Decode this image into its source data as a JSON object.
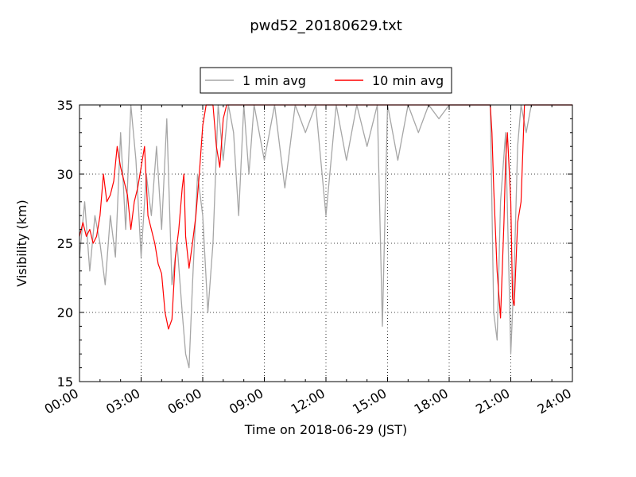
{
  "chart_data": {
    "type": "line",
    "title": "pwd52_20180629.txt",
    "xlabel": "Time on 2018-06-29 (JST)",
    "ylabel": "Visibility (km)",
    "xlim": [
      "00:00",
      "24:00"
    ],
    "ylim": [
      15,
      35
    ],
    "x_ticks": [
      "00:00",
      "03:00",
      "06:00",
      "09:00",
      "12:00",
      "15:00",
      "18:00",
      "21:00",
      "24:00"
    ],
    "y_ticks": [
      15,
      20,
      25,
      30,
      35
    ],
    "grid": true,
    "legend_position": "top-center",
    "series": [
      {
        "name": "1 min avg",
        "color": "#a6a6a6",
        "x": [
          "00:00",
          "00:15",
          "00:30",
          "00:45",
          "01:00",
          "01:15",
          "01:30",
          "01:45",
          "02:00",
          "02:15",
          "02:30",
          "02:45",
          "03:00",
          "03:15",
          "03:30",
          "03:45",
          "04:00",
          "04:15",
          "04:30",
          "04:45",
          "05:00",
          "05:10",
          "05:20",
          "05:30",
          "05:45",
          "06:00",
          "06:15",
          "06:30",
          "06:45",
          "07:00",
          "07:15",
          "07:30",
          "07:45",
          "08:00",
          "08:15",
          "08:30",
          "09:00",
          "09:30",
          "10:00",
          "10:30",
          "11:00",
          "11:30",
          "12:00",
          "12:30",
          "13:00",
          "13:30",
          "14:00",
          "14:30",
          "14:45",
          "15:00",
          "15:30",
          "16:00",
          "16:30",
          "17:00",
          "17:30",
          "18:00",
          "18:30",
          "19:00",
          "19:30",
          "20:00",
          "20:10",
          "20:20",
          "20:30",
          "20:45",
          "21:00",
          "21:10",
          "21:20",
          "21:30",
          "21:45",
          "22:00",
          "22:30",
          "23:00",
          "23:30",
          "24:00"
        ],
        "values": [
          24,
          28,
          23,
          27,
          25,
          22,
          27,
          24,
          33,
          26,
          35,
          31,
          24,
          30,
          27,
          32,
          26,
          34,
          22,
          25,
          20,
          17,
          16,
          22,
          30,
          27,
          20,
          25,
          35,
          31,
          35,
          33,
          27,
          35,
          30,
          35,
          31,
          35,
          29,
          35,
          33,
          35,
          27,
          35,
          31,
          35,
          32,
          35,
          19,
          35,
          31,
          35,
          33,
          35,
          34,
          35,
          35,
          35,
          35,
          35,
          20,
          18,
          28,
          33,
          17,
          23,
          32,
          35,
          33,
          35,
          35,
          35,
          35,
          35
        ]
      },
      {
        "name": "10 min avg",
        "color": "#ff0000",
        "x": [
          "00:00",
          "00:10",
          "00:20",
          "00:30",
          "00:40",
          "00:50",
          "01:00",
          "01:10",
          "01:20",
          "01:30",
          "01:40",
          "01:50",
          "02:00",
          "02:10",
          "02:20",
          "02:30",
          "02:40",
          "02:50",
          "03:00",
          "03:10",
          "03:20",
          "03:30",
          "03:40",
          "03:50",
          "04:00",
          "04:10",
          "04:20",
          "04:30",
          "04:40",
          "04:50",
          "05:00",
          "05:05",
          "05:10",
          "05:20",
          "05:30",
          "05:40",
          "05:50",
          "06:00",
          "06:10",
          "06:20",
          "06:30",
          "06:40",
          "06:50",
          "07:00",
          "07:10",
          "07:20",
          "07:30",
          "07:40",
          "07:50",
          "08:00",
          "08:10",
          "08:20",
          "08:30",
          "08:40",
          "09:00",
          "09:30",
          "10:00",
          "10:30",
          "11:00",
          "11:30",
          "12:00",
          "12:30",
          "13:00",
          "13:30",
          "14:00",
          "14:30",
          "15:00",
          "15:30",
          "16:00",
          "17:00",
          "18:00",
          "19:00",
          "19:30",
          "19:40",
          "19:50",
          "20:00",
          "20:05",
          "20:10",
          "20:20",
          "20:30",
          "20:40",
          "20:45",
          "20:50",
          "21:00",
          "21:05",
          "21:10",
          "21:20",
          "21:30",
          "21:40",
          "21:50",
          "22:00",
          "22:30",
          "23:00",
          "23:30",
          "24:00"
        ],
        "values": [
          25.5,
          26.5,
          25.5,
          26,
          25,
          25.5,
          27,
          30,
          28,
          28.5,
          29.5,
          32,
          30.5,
          29.5,
          28.5,
          26,
          28,
          29,
          30.5,
          32,
          27,
          26,
          25,
          23.5,
          22.8,
          20,
          18.8,
          19.5,
          24,
          26,
          29,
          30,
          25.5,
          23.2,
          25,
          27,
          30,
          33.5,
          35,
          35,
          35,
          32,
          30.5,
          34,
          35,
          35,
          35,
          35,
          35,
          35,
          35,
          35,
          35,
          35,
          35,
          35,
          35,
          35,
          35,
          35,
          35,
          35,
          35,
          35,
          35,
          35,
          35,
          35,
          35,
          35,
          35,
          35,
          35,
          35,
          35,
          35,
          33,
          29,
          23,
          19.6,
          26.5,
          31,
          33,
          28,
          21,
          20.5,
          26.5,
          28,
          35,
          35,
          35,
          35,
          35,
          35,
          35
        ]
      }
    ]
  }
}
